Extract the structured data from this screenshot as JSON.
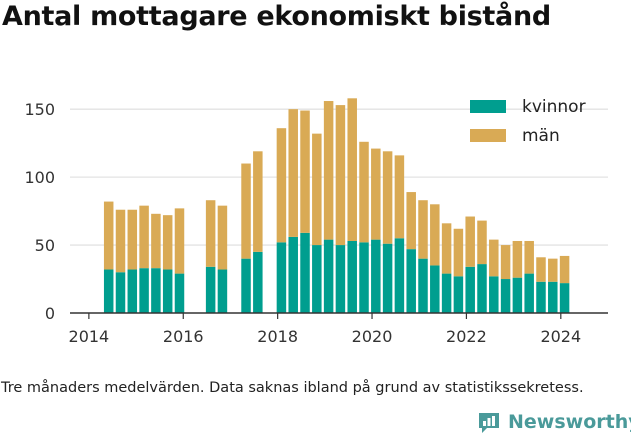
{
  "title": "Antal mottagare ekonomiskt bistånd",
  "footnote": "Tre månaders medelvärden. Data saknas ibland på grund av statistikssekretess.",
  "brand": {
    "name": "Newsworthy",
    "icon": "newsworthy-logo-icon"
  },
  "colors": {
    "kvinnor": "#009e8f",
    "man": "#d9aa55",
    "grid": "#e3e3e3",
    "axis": "#333333"
  },
  "chart_data": {
    "type": "bar",
    "stacked": true,
    "ylim": [
      0,
      170
    ],
    "yticks": [
      0,
      50,
      100,
      150
    ],
    "xlim": [
      2013.6,
      2025.0
    ],
    "xticks": [
      2014,
      2016,
      2018,
      2020,
      2022,
      2024
    ],
    "grid": true,
    "legend_position": "top-right",
    "x": [
      2014.42,
      2014.67,
      2014.92,
      2015.17,
      2015.42,
      2015.67,
      2015.92,
      2016.58,
      2016.83,
      2017.33,
      2017.58,
      2018.08,
      2018.33,
      2018.58,
      2018.83,
      2019.08,
      2019.33,
      2019.58,
      2019.83,
      2020.08,
      2020.33,
      2020.58,
      2020.83,
      2021.08,
      2021.33,
      2021.58,
      2021.83,
      2022.08,
      2022.33,
      2022.58,
      2022.83,
      2023.08,
      2023.33,
      2023.58,
      2023.83,
      2024.08
    ],
    "series": [
      {
        "name": "kvinnor",
        "values": [
          32,
          30,
          32,
          33,
          33,
          32,
          29,
          34,
          32,
          40,
          45,
          52,
          56,
          59,
          50,
          54,
          50,
          53,
          52,
          54,
          51,
          55,
          47,
          40,
          35,
          29,
          27,
          34,
          36,
          27,
          25,
          26,
          29,
          23,
          23,
          22
        ]
      },
      {
        "name": "män",
        "values": [
          50,
          46,
          44,
          46,
          40,
          40,
          48,
          49,
          47,
          70,
          74,
          84,
          94,
          90,
          82,
          102,
          103,
          105,
          74,
          67,
          68,
          61,
          42,
          43,
          45,
          37,
          35,
          37,
          32,
          27,
          25,
          27,
          24,
          18,
          17,
          20
        ]
      }
    ]
  }
}
